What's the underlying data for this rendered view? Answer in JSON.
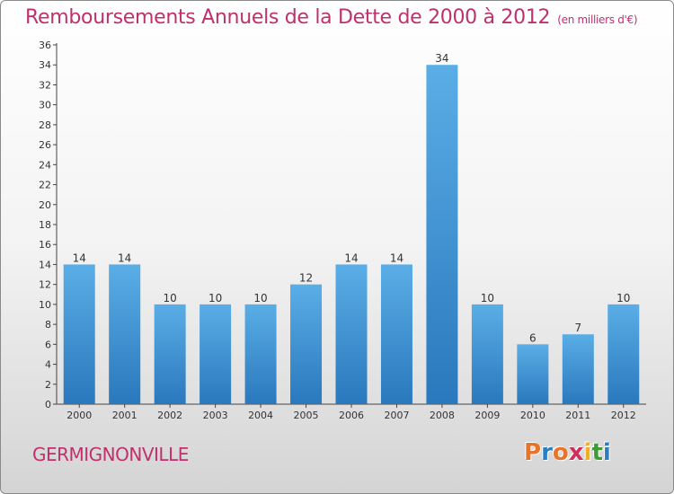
{
  "header": {
    "title": "Remboursements Annuels de la Dette de 2000 à 2012",
    "subtitle": "(en milliers d'€)"
  },
  "footer": {
    "place": "GERMIGNONVILLE",
    "logo_letters": [
      "P",
      "r",
      "o",
      "x",
      "i",
      "t",
      "i"
    ],
    "logo_colors": [
      "#e8732a",
      "#2b7fc1",
      "#e8732a",
      "#d22e5c",
      "#f2b01e",
      "#3f9c35",
      "#2b7fc1"
    ]
  },
  "chart_data": {
    "type": "bar",
    "categories": [
      "2000",
      "2001",
      "2002",
      "2003",
      "2004",
      "2005",
      "2006",
      "2007",
      "2008",
      "2009",
      "2010",
      "2011",
      "2012"
    ],
    "values": [
      14,
      14,
      10,
      10,
      10,
      12,
      14,
      14,
      34,
      10,
      6,
      7,
      10
    ],
    "yticks": [
      0,
      2,
      4,
      6,
      8,
      10,
      12,
      14,
      16,
      18,
      20,
      22,
      24,
      26,
      28,
      30,
      32,
      34,
      36
    ],
    "ylim": [
      0,
      36
    ],
    "grid": false,
    "bar_color": "#3a92d6"
  }
}
